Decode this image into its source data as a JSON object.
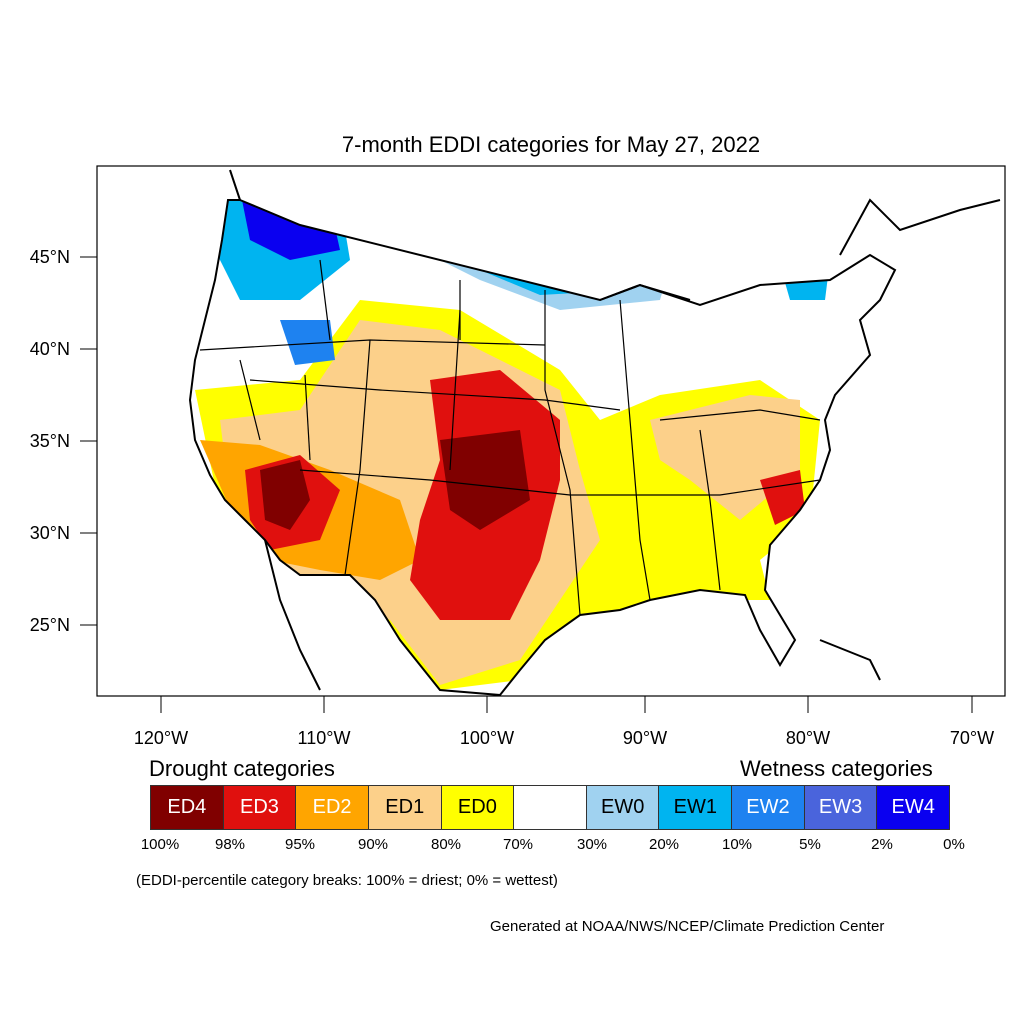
{
  "title": "7-month EDDI categories for May 27, 2022",
  "axes": {
    "lat_labels": [
      "45°N",
      "40°N",
      "35°N",
      "30°N",
      "25°N"
    ],
    "lon_labels": [
      "120°W",
      "110°W",
      "100°W",
      "90°W",
      "80°W",
      "70°W"
    ]
  },
  "legend": {
    "drought_heading": "Drought categories",
    "wetness_heading": "Wetness categories",
    "categories": [
      {
        "label": "ED4",
        "color": "#800000",
        "text_color": "#ffffff"
      },
      {
        "label": "ED3",
        "color": "#e0100e",
        "text_color": "#ffffff"
      },
      {
        "label": "ED2",
        "color": "#ffa500",
        "text_color": "#ffffff"
      },
      {
        "label": "ED1",
        "color": "#fcd08a",
        "text_color": "#000000"
      },
      {
        "label": "ED0",
        "color": "#ffff00",
        "text_color": "#000000"
      },
      {
        "label": "",
        "color": "#ffffff",
        "text_color": "#000000"
      },
      {
        "label": "EW0",
        "color": "#a0d2f0",
        "text_color": "#000000"
      },
      {
        "label": "EW1",
        "color": "#00b4f0",
        "text_color": "#000000"
      },
      {
        "label": "EW2",
        "color": "#1e82f0",
        "text_color": "#ffffff"
      },
      {
        "label": "EW3",
        "color": "#4a64dc",
        "text_color": "#ffffff"
      },
      {
        "label": "EW4",
        "color": "#0a00f0",
        "text_color": "#ffffff"
      }
    ],
    "breaks": [
      "100%",
      "98%",
      "95%",
      "90%",
      "80%",
      "70%",
      "30%",
      "20%",
      "10%",
      "5%",
      "2%",
      "0%"
    ]
  },
  "note": "(EDDI-percentile category breaks: 100% = driest; 0% = wettest)",
  "credit": "Generated at NOAA/NWS/NCEP/Climate Prediction Center"
}
